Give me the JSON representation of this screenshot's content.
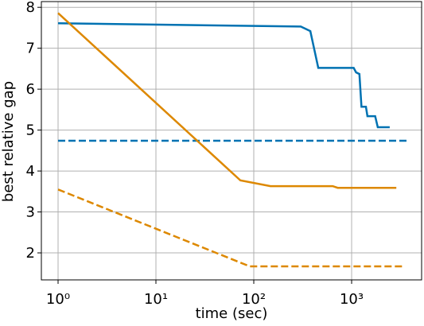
{
  "chart_data": {
    "type": "line",
    "xlabel": "time (sec)",
    "ylabel": "best relative gap",
    "xscale": "log",
    "grid": true,
    "xlim": [
      0.675,
      5190
    ],
    "ylim": [
      1.34,
      8.14
    ],
    "xticks": [
      {
        "value": 1,
        "label": "10⁰"
      },
      {
        "value": 10,
        "label": "10¹"
      },
      {
        "value": 100,
        "label": "10²"
      },
      {
        "value": 1000,
        "label": "10³"
      }
    ],
    "yticks": [
      2,
      3,
      4,
      5,
      6,
      7,
      8
    ],
    "series": [
      {
        "color": "#0072b2",
        "linestyle": "solid",
        "x": [
          1,
          302,
          378,
          456,
          1050,
          1110,
          1200,
          1260,
          1400,
          1450,
          1740,
          1850,
          2450
        ],
        "values": [
          7.61,
          7.53,
          7.42,
          6.52,
          6.52,
          6.41,
          6.37,
          5.57,
          5.57,
          5.34,
          5.34,
          5.07,
          5.07
        ]
      },
      {
        "color": "#0072b2",
        "linestyle": "dashed",
        "x": [
          1,
          3700
        ],
        "values": [
          4.74,
          4.74
        ]
      },
      {
        "color": "#dd8800",
        "linestyle": "solid",
        "x": [
          1,
          73,
          148,
          640,
          720,
          2860
        ],
        "values": [
          7.86,
          3.77,
          3.63,
          3.63,
          3.59,
          3.59
        ]
      },
      {
        "color": "#dd8800",
        "linestyle": "dashed",
        "x": [
          1,
          91,
          3450
        ],
        "values": [
          3.55,
          1.67,
          1.67
        ]
      }
    ]
  }
}
